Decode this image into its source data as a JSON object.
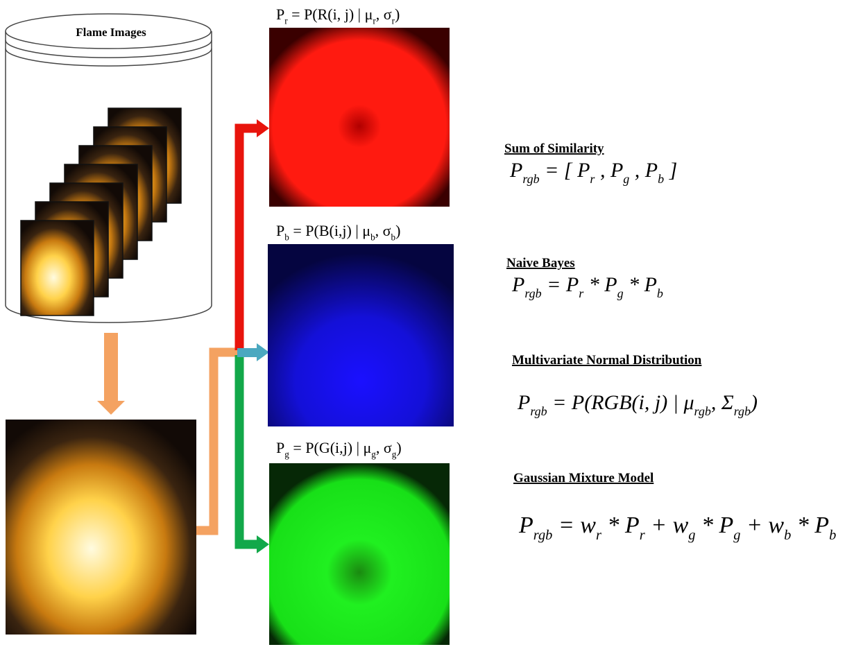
{
  "database": {
    "label": "Flame Images"
  },
  "channels": [
    {
      "formula": [
        {
          "base": "P",
          "sub": "r"
        },
        {
          "base": " = P(R(i,  j) | μ",
          "sub": "r"
        },
        {
          "base": ", σ",
          "sub": "r"
        },
        {
          "base": ")"
        }
      ]
    },
    {
      "formula": [
        {
          "base": "P",
          "sub": "b"
        },
        {
          "base": " = P(B(i,j) | μ",
          "sub": "b"
        },
        {
          "base": ", σ",
          "sub": "b"
        },
        {
          "base": ")"
        }
      ]
    },
    {
      "formula": [
        {
          "base": "P",
          "sub": "g"
        },
        {
          "base": " = P(G(i,j) | μ",
          "sub": "g"
        },
        {
          "base": ", σ",
          "sub": "g"
        },
        {
          "base": ")"
        }
      ]
    }
  ],
  "methods": [
    {
      "title": "Sum of Similarity",
      "formula": [
        {
          "base": "P",
          "sub": "rgb"
        },
        {
          "base": "  = [ P",
          "sub": "r"
        },
        {
          "base": " , P",
          "sub": "g"
        },
        {
          "base": " , P",
          "sub": "b"
        },
        {
          "base": " ]"
        }
      ]
    },
    {
      "title": "Naive Bayes",
      "formula": [
        {
          "base": "P",
          "sub": "rgb"
        },
        {
          "base": "  = P",
          "sub": "r"
        },
        {
          "base": " * P",
          "sub": "g"
        },
        {
          "base": " * P",
          "sub": "b"
        }
      ]
    },
    {
      "title": "Multivariate Normal Distribution",
      "formula": [
        {
          "base": "P",
          "sub": "rgb"
        },
        {
          "base": " = P(RGB(i, j) | μ",
          "sub": "rgb"
        },
        {
          "base": ", Σ",
          "sub": "rgb"
        },
        {
          "base": ")"
        }
      ]
    },
    {
      "title": "Gaussian Mixture Model",
      "formula": [
        {
          "base": "P",
          "sub": "rgb"
        },
        {
          "base": " = w",
          "sub": "r"
        },
        {
          "base": " * P",
          "sub": "r"
        },
        {
          "base": " + w",
          "sub": "g"
        },
        {
          "base": " * P",
          "sub": "g"
        },
        {
          "base": " + w",
          "sub": "b"
        },
        {
          "base": " * P",
          "sub": "b"
        }
      ]
    }
  ]
}
